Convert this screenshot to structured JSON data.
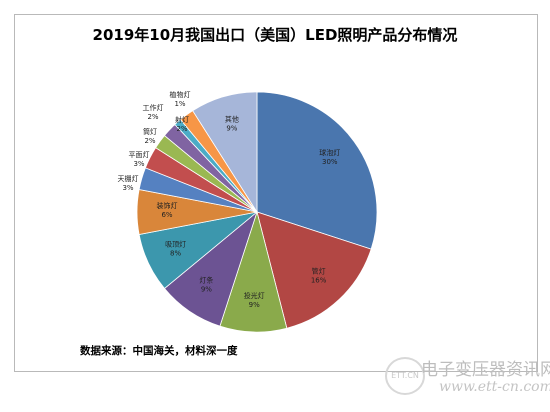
{
  "chart_data": {
    "type": "pie",
    "title": "2019年10月我国出口（美国）LED照明产品分布情况",
    "categories": [
      "球泡灯",
      "管灯",
      "投光灯",
      "灯条",
      "吸顶灯",
      "装饰灯",
      "天棚灯",
      "平面灯",
      "筒灯",
      "工作灯",
      "植物灯",
      "射灯",
      "其他"
    ],
    "values": [
      30,
      16,
      9,
      9,
      8,
      6,
      3,
      3,
      2,
      2,
      1,
      2,
      9
    ],
    "labels": [
      "30%",
      "16%",
      "9%",
      "9%",
      "8%",
      "6%",
      "3%",
      "3%",
      "2%",
      "2%",
      "1%",
      "2%",
      "9%"
    ],
    "colors": [
      "#4a76ae",
      "#b24744",
      "#8aaa4b",
      "#6c5393",
      "#3c97ad",
      "#d9863a",
      "#5581c1",
      "#c24e4e",
      "#9ab852",
      "#8064a2",
      "#4bacc6",
      "#f79646",
      "#a6b6d9"
    ],
    "start_angle_deg": 90,
    "direction": "clockwise",
    "legend": "none"
  },
  "source_note": "数据来源：中国海关，材料深一度",
  "watermark": {
    "logo_text": "ETT.CN",
    "site_name": "电子变压器资讯网",
    "url": "www.ett-cn.com"
  }
}
